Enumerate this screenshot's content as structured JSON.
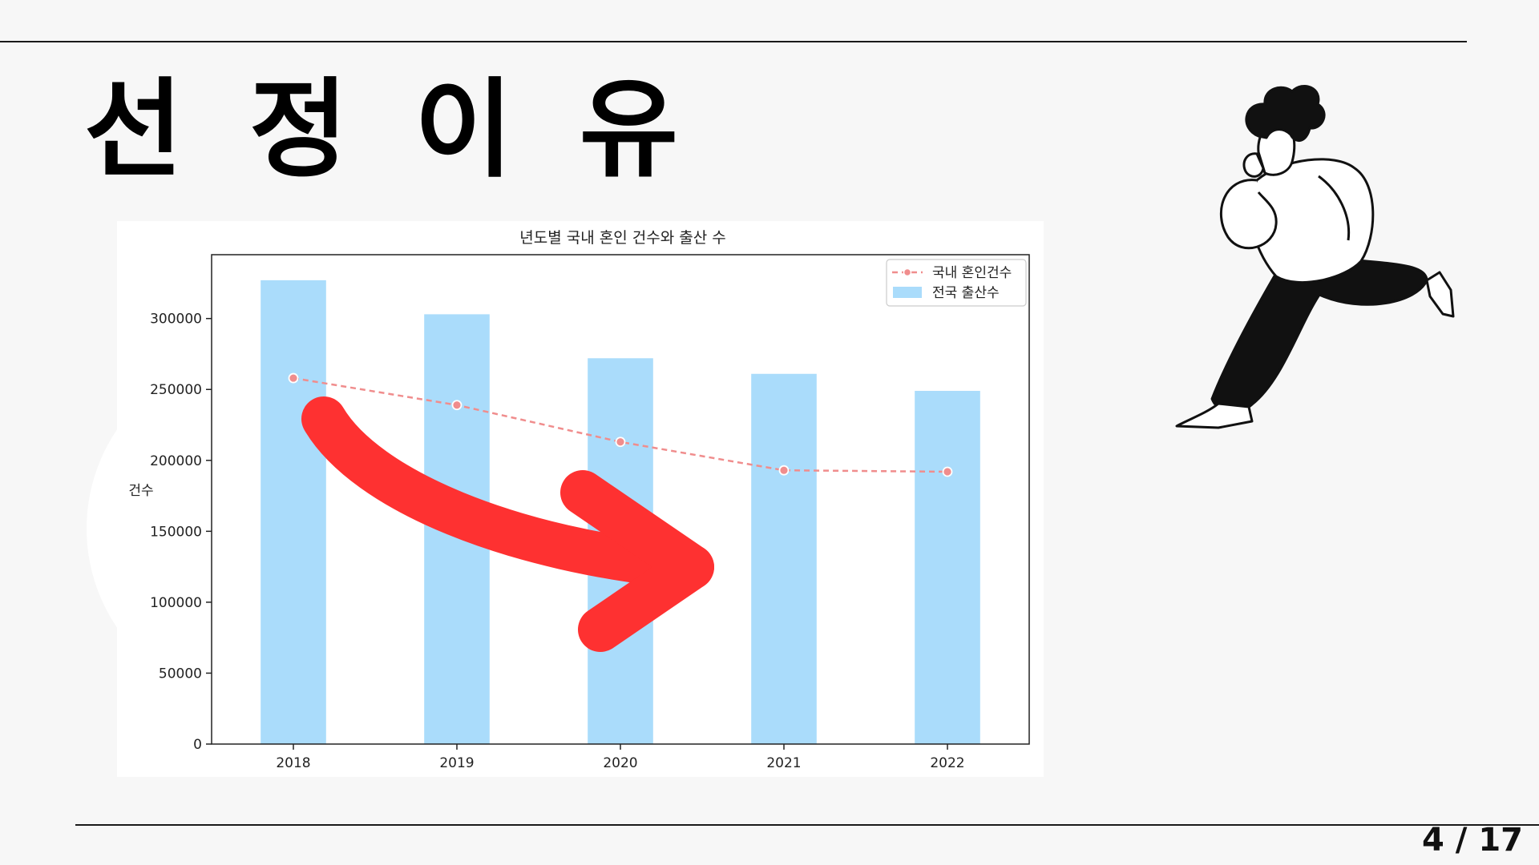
{
  "slide": {
    "title": "선 정 이 유",
    "page": "4 / 17"
  },
  "colors": {
    "bar": "#aadcfb",
    "line": "#f08d8d",
    "arrow": "#fe3131"
  },
  "chart_data": {
    "type": "bar",
    "title": "년도별 국내 혼인 건수와 출산 수",
    "xlabel": "",
    "ylabel": "건수",
    "categories": [
      "2018",
      "2019",
      "2020",
      "2021",
      "2022"
    ],
    "ylim": [
      0,
      345000
    ],
    "yticks": [
      0,
      50000,
      100000,
      150000,
      200000,
      250000,
      300000
    ],
    "series": [
      {
        "name": "전국 출산수",
        "type": "bar",
        "values": [
          327000,
          303000,
          272000,
          261000,
          249000
        ]
      },
      {
        "name": "국내 혼인건수",
        "type": "line",
        "style": "dashed",
        "values": [
          258000,
          239000,
          213000,
          193000,
          192000
        ]
      }
    ],
    "legend": [
      "국내 혼인건수",
      "전국 출산수"
    ],
    "legend_position": "top-right"
  }
}
